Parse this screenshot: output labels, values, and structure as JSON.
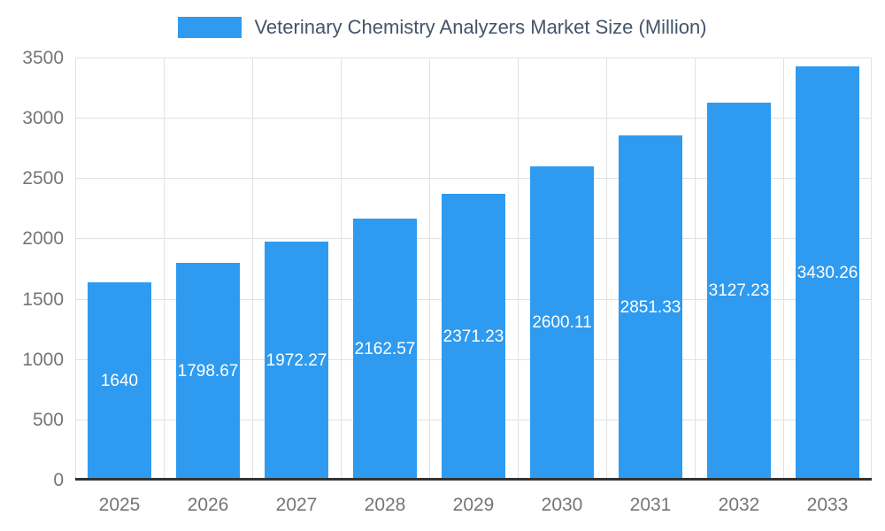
{
  "chart_data": {
    "type": "bar",
    "title": "Veterinary Chemistry Analyzers Market Size (Million)",
    "categories": [
      "2025",
      "2026",
      "2027",
      "2028",
      "2029",
      "2030",
      "2031",
      "2032",
      "2033"
    ],
    "values": [
      1640,
      1798.67,
      1972.27,
      2162.57,
      2371.23,
      2600.11,
      2851.33,
      3127.23,
      3430.26
    ],
    "bar_labels": [
      "1640",
      "1798.67",
      "1972.27",
      "2162.57",
      "2371.23",
      "2600.11",
      "2851.33",
      "3127.23",
      "3430.26"
    ],
    "xlabel": "",
    "ylabel": "",
    "ylim": [
      0,
      3500
    ],
    "ytick_step": 500,
    "yticks": [
      "0",
      "500",
      "1000",
      "1500",
      "2000",
      "2500",
      "3000",
      "3500"
    ],
    "grid": true,
    "legend_position": "top",
    "colors": {
      "bar": "#2E9BF0",
      "title_text": "#44546A",
      "axis_text": "#757575",
      "gridline": "#E2E2E2",
      "baseline": "#333333",
      "bar_label_text": "#FFFFFF"
    }
  }
}
